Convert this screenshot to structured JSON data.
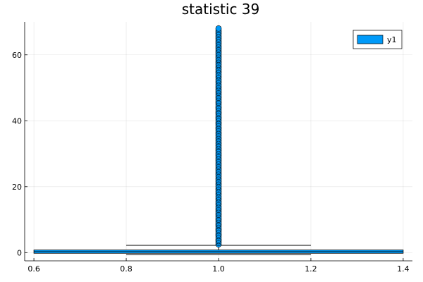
{
  "chart_data": {
    "type": "box",
    "title": "statistic 39",
    "xlabel": "",
    "ylabel": "",
    "xlim": [
      0.58,
      1.42
    ],
    "ylim": [
      -2.5,
      70
    ],
    "xticks": [
      0.6,
      0.8,
      1.0,
      1.2,
      1.4
    ],
    "xtick_labels": [
      "0.6",
      "0.8",
      "1.0",
      "1.2",
      "1.4"
    ],
    "yticks": [
      0,
      20,
      40,
      60
    ],
    "ytick_labels": [
      "0",
      "20",
      "40",
      "60"
    ],
    "grid": true,
    "legend": {
      "position": "top-right",
      "entries": [
        "y1"
      ]
    },
    "series": [
      {
        "name": "y1",
        "color": "#009AF9",
        "x": 1.0,
        "box_x_range": [
          0.6,
          1.4
        ],
        "whisker_x_range": [
          0.8,
          1.2
        ],
        "lower_whisker": -0.6,
        "q1": -0.2,
        "median": 0.3,
        "q3": 0.8,
        "upper_whisker": 2.2,
        "outliers": [
          2.5,
          3,
          3.5,
          4,
          4.5,
          5,
          5.5,
          6,
          6.5,
          7,
          7.5,
          8,
          8.5,
          9,
          9.5,
          10,
          10.5,
          11,
          11.5,
          12,
          12.5,
          13,
          13.5,
          14,
          14.5,
          15,
          15.5,
          16,
          16.5,
          17,
          17.5,
          18,
          18.5,
          19,
          19.5,
          20,
          20.5,
          21,
          21.5,
          22,
          22.5,
          23,
          23.5,
          24,
          24.5,
          25,
          25.5,
          26,
          26.5,
          27,
          27.5,
          28,
          28.5,
          29,
          29.5,
          30,
          30.5,
          31,
          31.5,
          32,
          32.5,
          33,
          33.5,
          34,
          34.5,
          35,
          35.5,
          36,
          36.5,
          37,
          37.5,
          38,
          38.5,
          39,
          39.5,
          40,
          40.5,
          41,
          41.5,
          42,
          42.5,
          43,
          43.5,
          44,
          44.5,
          45,
          45.5,
          46,
          46.5,
          47,
          47.5,
          48,
          48.5,
          49,
          49.5,
          50,
          50.5,
          51,
          51.5,
          52,
          52.5,
          53,
          53.5,
          54,
          54.5,
          55,
          55.5,
          56,
          56.5,
          57,
          57.5,
          58,
          58.5,
          59,
          59.5,
          60,
          60.5,
          61,
          61.5,
          62,
          62.5,
          63,
          63.5,
          64,
          64.5,
          65,
          65.5,
          66,
          66.5,
          67,
          67.5,
          68
        ]
      }
    ]
  }
}
